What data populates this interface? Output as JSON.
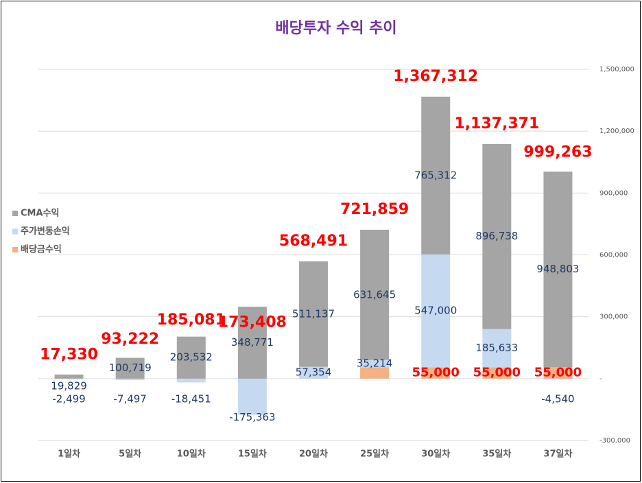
{
  "chart_data": {
    "type": "stacked_bar",
    "title": "배당투자 수익 추이",
    "categories": [
      "1일차",
      "5일차",
      "10일차",
      "15일차",
      "20일차",
      "25일차",
      "30일차",
      "35일차",
      "37일차"
    ],
    "series": [
      {
        "name": "CMA수익",
        "color": "#a5a5a5",
        "values": [
          19829,
          100719,
          203532,
          348771,
          511137,
          631645,
          765312,
          896738,
          948803
        ],
        "value_labels": [
          "19,829",
          "100,719",
          "203,532",
          "348,771",
          "511,137",
          "631,645",
          "765,312",
          "896,738",
          "948,803"
        ]
      },
      {
        "name": "주가변동손익",
        "color": "#c5d9f1",
        "values": [
          -2499,
          -7497,
          -18451,
          -175363,
          57354,
          35214,
          547000,
          185633,
          -4540
        ],
        "value_labels": [
          "-2,499",
          "-7,497",
          "-18,451",
          "-175,363",
          "57,354",
          "35,214",
          "547,000",
          "185,633",
          "-4,540"
        ]
      },
      {
        "name": "배당금수익",
        "color": "#f4b183",
        "values": [
          0,
          0,
          0,
          0,
          0,
          55000,
          55000,
          55000,
          55000
        ],
        "value_labels": [
          null,
          null,
          null,
          null,
          null,
          null,
          "55,000",
          "55,000",
          "55,000"
        ]
      }
    ],
    "totals": {
      "values": [
        17330,
        93222,
        185081,
        173408,
        568491,
        721859,
        1367312,
        1137371,
        999263
      ],
      "value_labels": [
        "17,330",
        "93,222",
        "185,081",
        "173,408",
        "568,491",
        "721,859",
        "1,367,312",
        "1,137,371",
        "999,263"
      ]
    },
    "ylim": [
      -300000,
      1500000
    ],
    "yticks": [
      {
        "value": -300000,
        "label": "-300,000"
      },
      {
        "value": 0,
        "label": "-"
      },
      {
        "value": 300000,
        "label": "300,000"
      },
      {
        "value": 600000,
        "label": "600,000"
      },
      {
        "value": 900000,
        "label": "900,000"
      },
      {
        "value": 1200000,
        "label": "1,200,000"
      },
      {
        "value": 1500000,
        "label": "1,500,000"
      }
    ],
    "grid": true,
    "legend": "left"
  }
}
